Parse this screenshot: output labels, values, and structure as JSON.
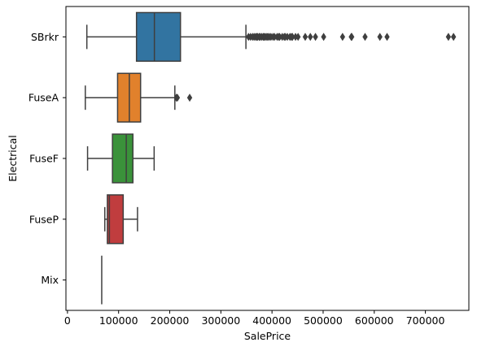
{
  "chart_data": {
    "type": "boxplot",
    "orientation": "horizontal",
    "title": "",
    "xlabel": "SalePrice",
    "ylabel": "Electrical",
    "xlim": [
      -3000,
      785000
    ],
    "xticks": [
      0,
      100000,
      200000,
      300000,
      400000,
      500000,
      600000,
      700000
    ],
    "xtick_labels": [
      "0",
      "100000",
      "200000",
      "300000",
      "400000",
      "500000",
      "600000",
      "700000"
    ],
    "grid": false,
    "categories": [
      "SBrkr",
      "FuseA",
      "FuseF",
      "FuseP",
      "Mix"
    ],
    "boxes": [
      {
        "category": "SBrkr",
        "color": "#3274a1",
        "whisker_low": 37900,
        "q1": 135000,
        "median": 170000,
        "q3": 221000,
        "whisker_high": 349000,
        "outliers": [
          354000,
          358000,
          362000,
          365000,
          368000,
          370000,
          372000,
          375000,
          377000,
          380000,
          383000,
          385000,
          387000,
          390000,
          392000,
          395000,
          398000,
          402000,
          405000,
          410000,
          413000,
          415000,
          420000,
          424000,
          426000,
          430000,
          435000,
          438000,
          440000,
          446000,
          451000,
          465000,
          475000,
          485000,
          501000,
          538000,
          555000,
          556000,
          582000,
          611000,
          625000,
          745000,
          755000
        ]
      },
      {
        "category": "FuseA",
        "color": "#e1812c",
        "whisker_low": 34900,
        "q1": 98000,
        "median": 121000,
        "q3": 143000,
        "whisker_high": 210000,
        "outliers": [
          213000,
          215000,
          239000
        ]
      },
      {
        "category": "FuseF",
        "color": "#3a923a",
        "whisker_low": 39300,
        "q1": 88000,
        "median": 115000,
        "q3": 128000,
        "whisker_high": 169500,
        "outliers": []
      },
      {
        "category": "FuseP",
        "color": "#c03d3e",
        "whisker_low": 73000,
        "q1": 78000,
        "median": 82000,
        "q3": 109000,
        "whisker_high": 137000,
        "outliers": []
      },
      {
        "category": "Mix",
        "color": "#9372b2",
        "whisker_low": 67000,
        "q1": 67000,
        "median": 67000,
        "q3": 67000,
        "whisker_high": 67000,
        "outliers": []
      }
    ]
  }
}
